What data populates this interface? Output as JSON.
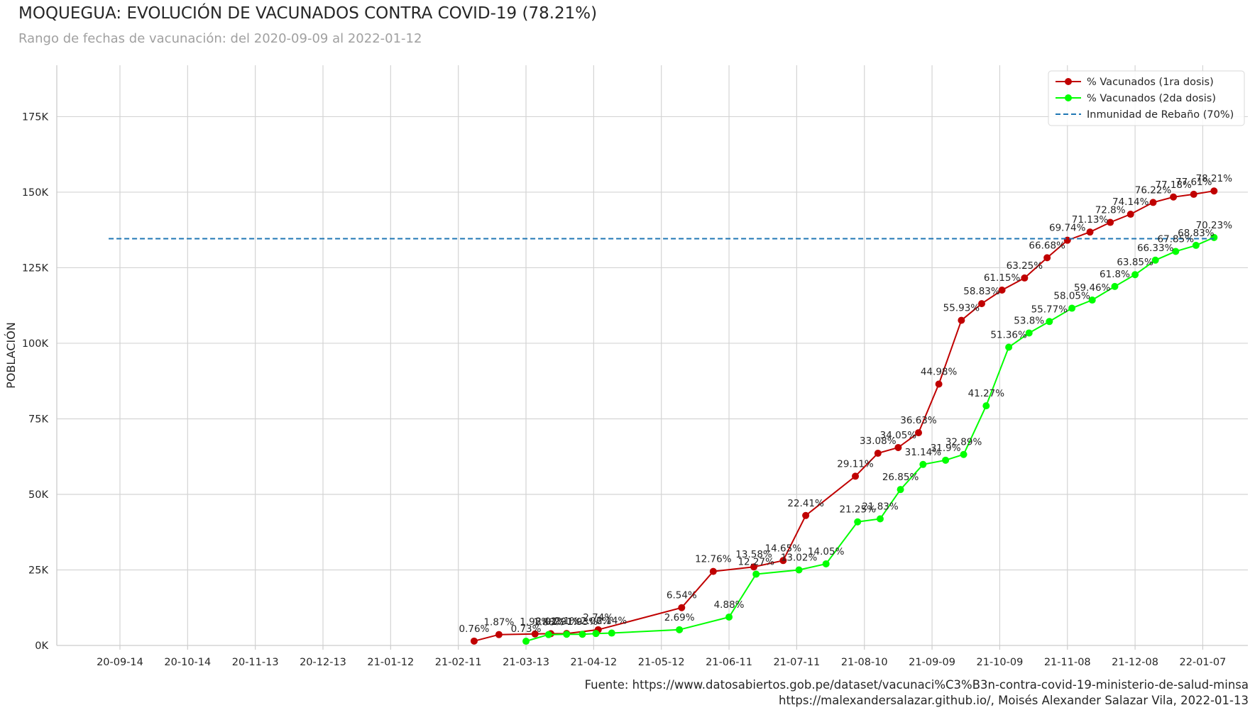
{
  "title": "MOQUEGUA: EVOLUCIÓN DE VACUNADOS CONTRA COVID-19 (78.21%)",
  "subtitle": "Rango de fechas de vacunación: del 2020-09-09 al 2022-01-12",
  "footer": {
    "line1": "Fuente: https://www.datosabiertos.gob.pe/dataset/vacunaci%C3%B3n-contra-covid-19-ministerio-de-salud-minsa",
    "line2": "https://malexandersalazar.github.io/, Moisés Alexander Salazar Vila, 2022-01-13"
  },
  "chart_data": {
    "type": "line",
    "title": "MOQUEGUA: EVOLUCIÓN DE VACUNADOS CONTRA COVID-19 (78.21%)",
    "xlabel": "",
    "ylabel": "POBLACIÓN",
    "ylim": [
      0,
      192000
    ],
    "xlim": [
      "2020-08-17",
      "2022-01-27"
    ],
    "y_ticks": [
      0,
      25000,
      50000,
      75000,
      100000,
      125000,
      150000,
      175000
    ],
    "y_tick_labels": [
      "0K",
      "25K",
      "50K",
      "75K",
      "100K",
      "125K",
      "150K",
      "175K"
    ],
    "x_tick_dates": [
      "2020-09-14",
      "2020-10-14",
      "2020-11-13",
      "2020-12-13",
      "2021-01-12",
      "2021-02-11",
      "2021-03-13",
      "2021-04-12",
      "2021-05-12",
      "2021-06-11",
      "2021-07-11",
      "2021-08-10",
      "2021-09-09",
      "2021-10-09",
      "2021-11-08",
      "2021-12-08",
      "2022-01-07"
    ],
    "x_tick_labels": [
      "20-09-14",
      "20-10-14",
      "20-11-13",
      "20-12-13",
      "21-01-12",
      "21-02-11",
      "21-03-13",
      "21-04-12",
      "21-05-12",
      "21-06-11",
      "21-07-11",
      "21-08-10",
      "21-09-09",
      "21-10-09",
      "21-11-08",
      "21-12-08",
      "22-01-07"
    ],
    "grid": true,
    "legend_position": "top-right",
    "series": [
      {
        "name": "% Vacunados (1ra dosis)",
        "color": "#c00000",
        "points": [
          {
            "x": "2021-02-18",
            "y": 1450,
            "label": "0.76%"
          },
          {
            "x": "2021-03-01",
            "y": 3600,
            "label": "1.87%"
          },
          {
            "x": "2021-03-17",
            "y": 3800,
            "label": "1.98%"
          },
          {
            "x": "2021-03-24",
            "y": 3900,
            "label": "2.02%"
          },
          {
            "x": "2021-03-31",
            "y": 3950,
            "label": "2.1%"
          },
          {
            "x": "2021-04-14",
            "y": 5200,
            "label": "2.74%"
          },
          {
            "x": "2021-05-21",
            "y": 12500,
            "label": "6.54%"
          },
          {
            "x": "2021-06-04",
            "y": 24500,
            "label": "12.76%"
          },
          {
            "x": "2021-06-22",
            "y": 26000,
            "label": "13.58%"
          },
          {
            "x": "2021-07-05",
            "y": 28100,
            "label": "14.65%"
          },
          {
            "x": "2021-07-15",
            "y": 43000,
            "label": "22.41%"
          },
          {
            "x": "2021-08-06",
            "y": 56000,
            "label": "29.11%"
          },
          {
            "x": "2021-08-16",
            "y": 63600,
            "label": "33.08%"
          },
          {
            "x": "2021-08-25",
            "y": 65500,
            "label": "34.05%"
          },
          {
            "x": "2021-09-03",
            "y": 70400,
            "label": "36.63%"
          },
          {
            "x": "2021-09-12",
            "y": 86500,
            "label": "44.98%"
          },
          {
            "x": "2021-09-22",
            "y": 107600,
            "label": "55.93%"
          },
          {
            "x": "2021-10-01",
            "y": 113100,
            "label": "58.83%"
          },
          {
            "x": "2021-10-10",
            "y": 117600,
            "label": "61.15%"
          },
          {
            "x": "2021-10-20",
            "y": 121600,
            "label": "63.25%"
          },
          {
            "x": "2021-10-30",
            "y": 128300,
            "label": "66.68%"
          },
          {
            "x": "2021-11-08",
            "y": 134100,
            "label": "69.74%"
          },
          {
            "x": "2021-11-18",
            "y": 136800,
            "label": "71.13%"
          },
          {
            "x": "2021-11-27",
            "y": 140000,
            "label": "72.8%"
          },
          {
            "x": "2021-12-06",
            "y": 142700,
            "label": "74.14%"
          },
          {
            "x": "2021-12-16",
            "y": 146600,
            "label": "76.22%"
          },
          {
            "x": "2021-12-25",
            "y": 148400,
            "label": "77.18%"
          },
          {
            "x": "2022-01-03",
            "y": 149300,
            "label": "77.61%"
          },
          {
            "x": "2022-01-12",
            "y": 150400,
            "label": "78.21%"
          }
        ]
      },
      {
        "name": "% Vacunados (2da dosis)",
        "color": "#00ff00",
        "points": [
          {
            "x": "2021-03-13",
            "y": 1400,
            "label": "0.73%"
          },
          {
            "x": "2021-03-23",
            "y": 3600,
            "label": "1.88%"
          },
          {
            "x": "2021-03-31",
            "y": 3700,
            "label": "1.91%"
          },
          {
            "x": "2021-04-07",
            "y": 3700,
            "label": "1.93%"
          },
          {
            "x": "2021-04-13",
            "y": 3950,
            "label": "2.06%"
          },
          {
            "x": "2021-04-20",
            "y": 4100,
            "label": "2.14%"
          },
          {
            "x": "2021-05-20",
            "y": 5200,
            "label": "2.69%"
          },
          {
            "x": "2021-06-11",
            "y": 9400,
            "label": "4.88%"
          },
          {
            "x": "2021-06-23",
            "y": 23600,
            "label": "12.27%"
          },
          {
            "x": "2021-07-12",
            "y": 25000,
            "label": "13.02%"
          },
          {
            "x": "2021-07-24",
            "y": 27000,
            "label": "14.05%"
          },
          {
            "x": "2021-08-07",
            "y": 40900,
            "label": "21.25%"
          },
          {
            "x": "2021-08-17",
            "y": 41900,
            "label": "21.83%"
          },
          {
            "x": "2021-08-26",
            "y": 51600,
            "label": "26.85%"
          },
          {
            "x": "2021-09-05",
            "y": 59900,
            "label": "31.14%"
          },
          {
            "x": "2021-09-15",
            "y": 61300,
            "label": "31.9%"
          },
          {
            "x": "2021-09-23",
            "y": 63200,
            "label": "32.89%"
          },
          {
            "x": "2021-10-03",
            "y": 79300,
            "label": "41.27%"
          },
          {
            "x": "2021-10-13",
            "y": 98700,
            "label": "51.36%"
          },
          {
            "x": "2021-10-22",
            "y": 103400,
            "label": "53.8%"
          },
          {
            "x": "2021-10-31",
            "y": 107200,
            "label": "55.77%"
          },
          {
            "x": "2021-11-10",
            "y": 111600,
            "label": "58.05%"
          },
          {
            "x": "2021-11-19",
            "y": 114300,
            "label": "59.46%"
          },
          {
            "x": "2021-11-29",
            "y": 118800,
            "label": "61.8%"
          },
          {
            "x": "2021-12-08",
            "y": 122700,
            "label": "63.85%"
          },
          {
            "x": "2021-12-17",
            "y": 127500,
            "label": "66.33%"
          },
          {
            "x": "2021-12-26",
            "y": 130400,
            "label": "67.85%"
          },
          {
            "x": "2022-01-04",
            "y": 132400,
            "label": "68.83%"
          },
          {
            "x": "2022-01-12",
            "y": 135000,
            "label": "70.23%"
          }
        ]
      },
      {
        "name": "Inmunidad de Rebaño (70%)",
        "color": "#1f77b4",
        "style": "dashed",
        "points": [
          {
            "x": "2020-09-09",
            "y": 134600
          },
          {
            "x": "2022-01-12",
            "y": 134600
          }
        ]
      }
    ]
  }
}
